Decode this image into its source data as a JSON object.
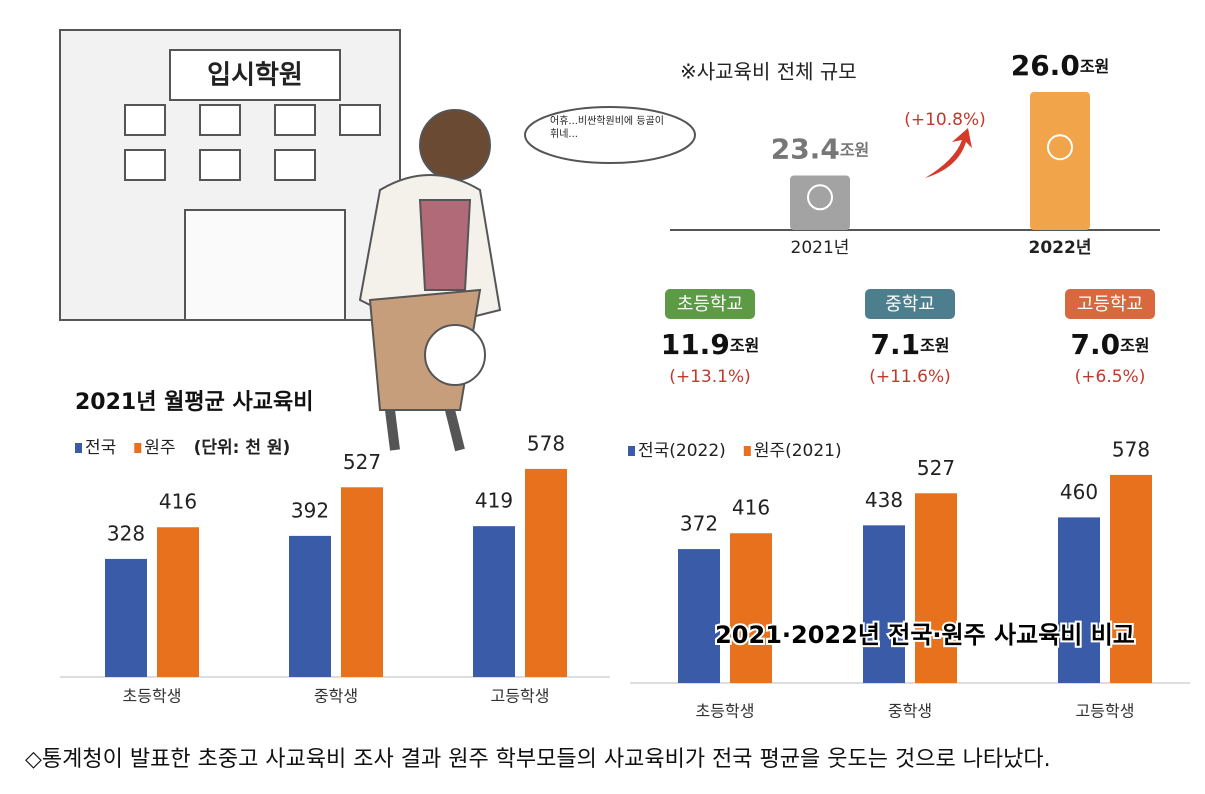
{
  "illustration": {
    "sign": "입시학원",
    "speech": "어휴...비싼학원비에 등골이 휘네..."
  },
  "school_levels": [
    {
      "name": "초등학교",
      "value": "11.9",
      "unit": "조원",
      "change": "(+13.1%)",
      "color": "#5c9a45"
    },
    {
      "name": "중학교",
      "value": "7.1",
      "unit": "조원",
      "change": "(+11.6%)",
      "color": "#4d7e8e"
    },
    {
      "name": "고등학교",
      "value": "7.0",
      "unit": "조원",
      "change": "(+6.5%)",
      "color": "#d8693e"
    }
  ],
  "caption": "◇통계청이 발표한 초중고 사교육비 조사 결과 원주 학부모들의 사교육비가 전국 평균을 웃도는 것으로 나타났다.",
  "chart_data": [
    {
      "type": "bar",
      "title": "※사교육비 전체 규모",
      "categories": [
        "2021년",
        "2022년"
      ],
      "values": [
        23.4,
        26.0
      ],
      "value_labels": [
        "23.4",
        "26.0"
      ],
      "unit": "조원",
      "colors": [
        "#a3a3a3",
        "#f2a44a"
      ],
      "annotation": "(+10.8%)",
      "ylim": [
        21.7,
        26.0
      ]
    },
    {
      "type": "grouped-bar",
      "title": "2021년 월평균 사교육비",
      "note": "(단위: 천 원)",
      "categories": [
        "초등학생",
        "중학생",
        "고등학생"
      ],
      "series": [
        {
          "name": "전국",
          "color": "#3a5ba8",
          "values": [
            328,
            392,
            419
          ]
        },
        {
          "name": "원주",
          "color": "#e8711e",
          "values": [
            416,
            527,
            578
          ]
        }
      ],
      "ylim": [
        0,
        650
      ]
    },
    {
      "type": "grouped-bar",
      "title": "2021·2022년 전국·원주 사교육비 비교",
      "categories": [
        "초등학생",
        "중학생",
        "고등학생"
      ],
      "series": [
        {
          "name": "전국(2022)",
          "color": "#3a5ba8",
          "values": [
            372,
            438,
            460
          ]
        },
        {
          "name": "원주(2021)",
          "color": "#e8711e",
          "values": [
            416,
            527,
            578
          ]
        }
      ],
      "ylim": [
        0,
        650
      ]
    }
  ]
}
